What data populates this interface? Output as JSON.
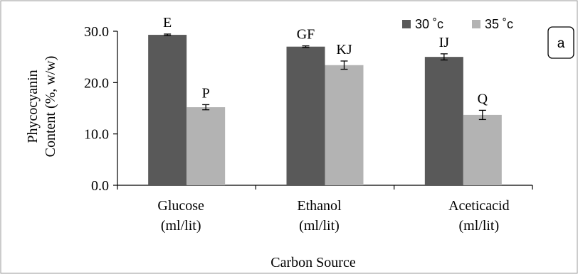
{
  "chart_data": {
    "type": "bar",
    "categories": [
      [
        "Glucose",
        "(ml/lit)"
      ],
      [
        "Ethanol",
        "(ml/lit)"
      ],
      [
        "Aceticacid",
        "(ml/lit)"
      ]
    ],
    "series": [
      {
        "name": "30 ˚c",
        "color": "#595959",
        "values": [
          29.3,
          27.0,
          25.0
        ],
        "errors": [
          0.15,
          0.15,
          0.6
        ],
        "labels": [
          "E",
          "GF",
          "IJ"
        ]
      },
      {
        "name": "35 ˚c",
        "color": "#b3b3b3",
        "values": [
          15.2,
          23.4,
          13.7
        ],
        "errors": [
          0.5,
          0.8,
          0.9
        ],
        "labels": [
          "P",
          "KJ",
          "Q"
        ]
      }
    ],
    "ylabel": [
      "Phycocyanin",
      "Content (%, w/w)"
    ],
    "xlabel": "Carbon Source",
    "ylim": [
      0,
      30
    ],
    "yticks": [
      0,
      10,
      20,
      30
    ],
    "ytick_labels": [
      "0.0",
      "10.0",
      "20.0",
      "30.0"
    ],
    "legend_position": "top-right",
    "panel_label": "a",
    "grid": false
  }
}
